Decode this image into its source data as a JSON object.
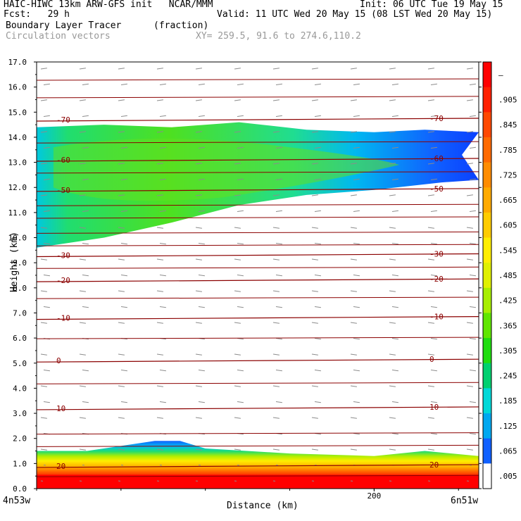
{
  "header": {
    "line1_left": "HAIC-HIWC 13km ARW-GFS init   NCAR/MMM",
    "line1_right": "Init: 06 UTC Tue 19 May 15",
    "line2_left": "Fcst:   29 h",
    "line2_right": "Valid: 11 UTC Wed 20 May 15 (08 LST Wed 20 May 15)",
    "line3_left": "Boundary Layer Tracer",
    "line3_units": "(fraction)",
    "line4_left": "Circulation vectors",
    "line4_xy": "XY= 259.5, 91.6 to 274.6,110.2"
  },
  "chart_data": {
    "type": "heatmap",
    "title": "Boundary Layer Tracer",
    "units": "(fraction)",
    "xlabel": "Distance (km)",
    "ylabel": "Height (km)",
    "xlim": [
      0,
      262
    ],
    "ylim": [
      0,
      17
    ],
    "x_ticks": [
      {
        "value": 200,
        "label": "200"
      }
    ],
    "x_end_labels": {
      "left": "4n53w",
      "right": "6n51w"
    },
    "y_ticks": [
      "0.0",
      "1.0",
      "2.0",
      "3.0",
      "4.0",
      "5.0",
      "6.0",
      "7.0",
      "8.0",
      "9.0",
      "10.0",
      "11.0",
      "12.0",
      "13.0",
      "14.0",
      "15.0",
      "16.0",
      "17.0"
    ],
    "colorbar": {
      "labels": [
        "–",
        ".905",
        ".845",
        ".785",
        ".725",
        ".665",
        ".605",
        ".545",
        ".485",
        ".425",
        ".365",
        ".305",
        ".245",
        ".185",
        ".125",
        ".065",
        ".005"
      ],
      "colors": [
        "#ff0000",
        "#ff2000",
        "#ff4800",
        "#ff6a00",
        "#ff8c00",
        "#ffaa00",
        "#ffcc00",
        "#ffee00",
        "#e0f000",
        "#a8ee00",
        "#60e600",
        "#20dd10",
        "#00d070",
        "#00d8d8",
        "#00a8f0",
        "#1060ff",
        "#ffffff"
      ]
    },
    "tracer_layers": [
      {
        "name": "upper-layer",
        "bottom_km": [
          [
            0,
            9.6
          ],
          [
            40,
            10.0
          ],
          [
            80,
            10.6
          ],
          [
            120,
            11.3
          ],
          [
            160,
            11.7
          ],
          [
            200,
            11.9
          ],
          [
            240,
            12.2
          ],
          [
            262,
            12.3
          ]
        ],
        "top_km": [
          [
            0,
            14.4
          ],
          [
            40,
            14.5
          ],
          [
            80,
            14.4
          ],
          [
            120,
            14.6
          ],
          [
            160,
            14.3
          ],
          [
            200,
            14.2
          ],
          [
            230,
            14.3
          ],
          [
            262,
            14.2
          ]
        ]
      },
      {
        "name": "boundary-layer",
        "top_km": [
          [
            0,
            1.5
          ],
          [
            30,
            1.5
          ],
          [
            50,
            1.7
          ],
          [
            70,
            1.9
          ],
          [
            85,
            1.9
          ],
          [
            100,
            1.6
          ],
          [
            150,
            1.4
          ],
          [
            200,
            1.3
          ],
          [
            230,
            1.5
          ],
          [
            262,
            1.3
          ]
        ]
      }
    ],
    "isotherms": [
      {
        "label": "-70",
        "y_km": 14.7
      },
      {
        "label": "-60",
        "y_km": 13.1
      },
      {
        "label": "-50",
        "y_km": 11.9
      },
      {
        "label": "-30",
        "y_km": 9.3
      },
      {
        "label": "-20",
        "y_km": 8.3
      },
      {
        "label": "-10",
        "y_km": 6.8
      },
      {
        "label": "0",
        "y_km": 5.1
      },
      {
        "label": "10",
        "y_km": 3.2
      },
      {
        "label": "20",
        "y_km": 0.9
      }
    ],
    "grid": false
  }
}
